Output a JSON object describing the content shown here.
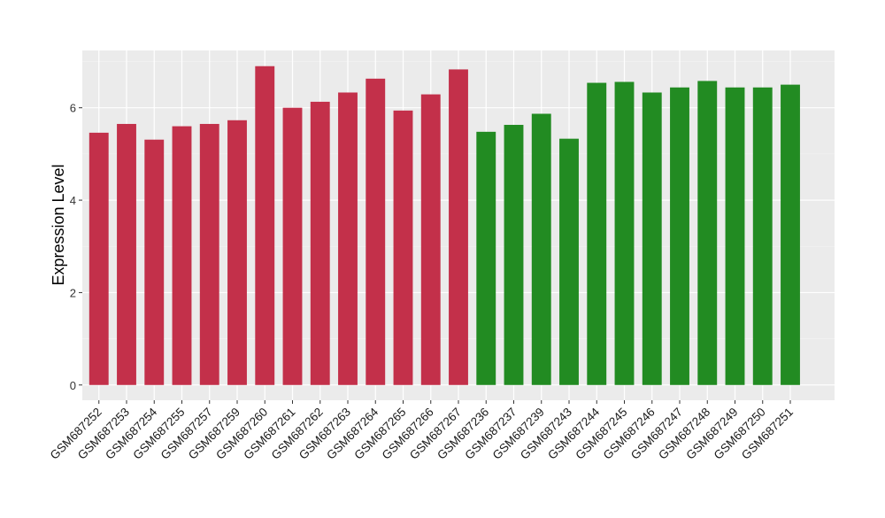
{
  "chart_data": {
    "type": "bar",
    "title": "",
    "xlabel": "",
    "ylabel": "Expression Level",
    "ylim": [
      -0.33,
      7.24
    ],
    "yticks": [
      0,
      2,
      4,
      6
    ],
    "grid": true,
    "legend": "none",
    "categories": [
      "GSM687252",
      "GSM687253",
      "GSM687254",
      "GSM687255",
      "GSM687257",
      "GSM687259",
      "GSM687260",
      "GSM687261",
      "GSM687262",
      "GSM687263",
      "GSM687264",
      "GSM687265",
      "GSM687266",
      "GSM687267",
      "GSM687236",
      "GSM687237",
      "GSM687239",
      "GSM687243",
      "GSM687244",
      "GSM687245",
      "GSM687246",
      "GSM687247",
      "GSM687248",
      "GSM687249",
      "GSM687250",
      "GSM687251"
    ],
    "values": [
      5.46,
      5.65,
      5.31,
      5.6,
      5.65,
      5.73,
      6.9,
      6.0,
      6.13,
      6.33,
      6.63,
      5.94,
      6.29,
      6.83,
      5.48,
      5.63,
      5.87,
      5.33,
      6.54,
      6.56,
      6.33,
      6.44,
      6.58,
      6.44,
      6.44,
      6.5
    ],
    "groups": [
      "a",
      "a",
      "a",
      "a",
      "a",
      "a",
      "a",
      "a",
      "a",
      "a",
      "a",
      "a",
      "a",
      "a",
      "b",
      "b",
      "b",
      "b",
      "b",
      "b",
      "b",
      "b",
      "b",
      "b",
      "b",
      "b"
    ],
    "colors": {
      "a": "#C3304A",
      "b": "#228B22"
    },
    "background": "#EBEBEB"
  }
}
